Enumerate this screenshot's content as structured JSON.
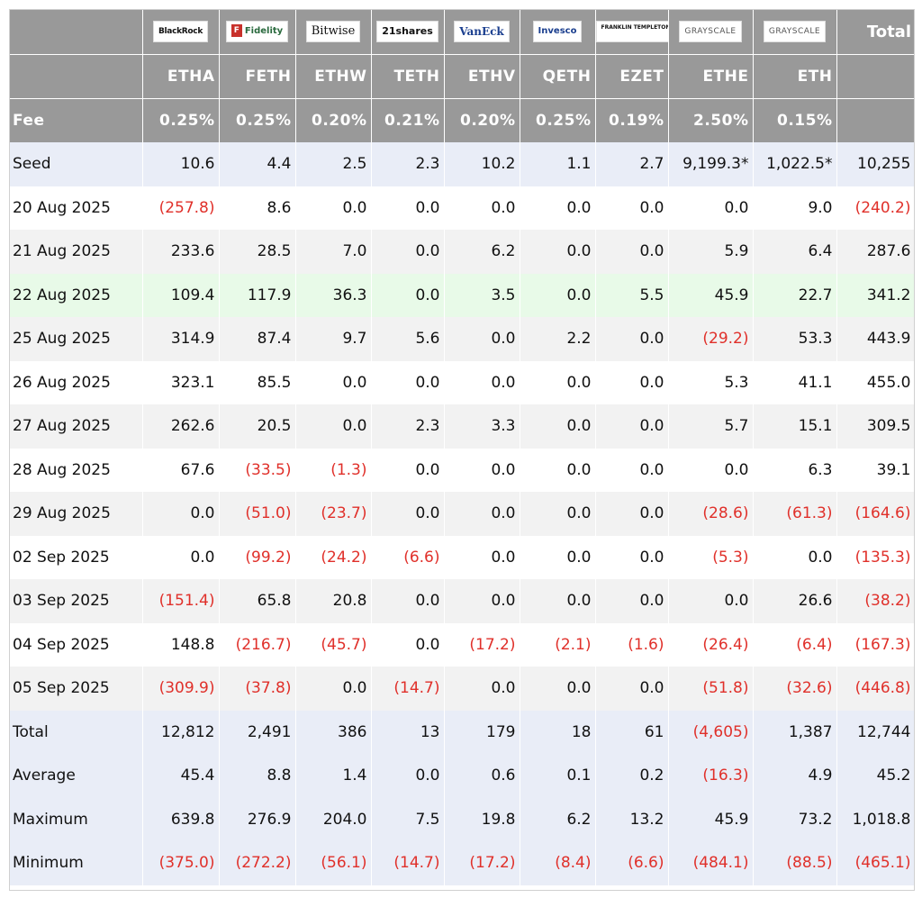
{
  "header": {
    "logos": [
      {
        "name": "BlackRock",
        "icon": "blackrock-logo"
      },
      {
        "name": "Fidelity",
        "icon": "fidelity-logo"
      },
      {
        "name": "Bitwise",
        "icon": "bitwise-logo"
      },
      {
        "name": "21shares",
        "icon": "21shares-logo"
      },
      {
        "name": "VanEck",
        "icon": "vaneck-logo"
      },
      {
        "name": "Invesco",
        "icon": "invesco-logo"
      },
      {
        "name": "FRANKLIN TEMPLETON",
        "icon": "franklin-templeton-logo"
      },
      {
        "name": "GRAYSCALE",
        "icon": "grayscale-logo"
      },
      {
        "name": "GRAYSCALE",
        "icon": "grayscale-logo"
      }
    ],
    "total_label": "Total",
    "tickers": [
      "ETHA",
      "FETH",
      "ETHW",
      "TETH",
      "ETHV",
      "QETH",
      "EZET",
      "ETHE",
      "ETH"
    ],
    "fee_label": "Fee",
    "fees": [
      "0.25%",
      "0.25%",
      "0.20%",
      "0.21%",
      "0.20%",
      "0.25%",
      "0.19%",
      "2.50%",
      "0.15%"
    ]
  },
  "rows": [
    {
      "label": "Seed",
      "style": "seed",
      "values": [
        "10.6",
        "4.4",
        "2.5",
        "2.3",
        "10.2",
        "1.1",
        "2.7",
        "9,199.3*",
        "1,022.5*",
        "10,255"
      ]
    },
    {
      "label": "20 Aug 2025",
      "style": "white",
      "values": [
        "(257.8)",
        "8.6",
        "0.0",
        "0.0",
        "0.0",
        "0.0",
        "0.0",
        "0.0",
        "9.0",
        "(240.2)"
      ]
    },
    {
      "label": "21 Aug 2025",
      "style": "alt",
      "values": [
        "233.6",
        "28.5",
        "7.0",
        "0.0",
        "6.2",
        "0.0",
        "0.0",
        "5.9",
        "6.4",
        "287.6"
      ]
    },
    {
      "label": "22 Aug 2025",
      "style": "green",
      "values": [
        "109.4",
        "117.9",
        "36.3",
        "0.0",
        "3.5",
        "0.0",
        "5.5",
        "45.9",
        "22.7",
        "341.2"
      ]
    },
    {
      "label": "25 Aug 2025",
      "style": "alt",
      "values": [
        "314.9",
        "87.4",
        "9.7",
        "5.6",
        "0.0",
        "2.2",
        "0.0",
        "(29.2)",
        "53.3",
        "443.9"
      ]
    },
    {
      "label": "26 Aug 2025",
      "style": "white",
      "values": [
        "323.1",
        "85.5",
        "0.0",
        "0.0",
        "0.0",
        "0.0",
        "0.0",
        "5.3",
        "41.1",
        "455.0"
      ]
    },
    {
      "label": "27 Aug 2025",
      "style": "alt",
      "values": [
        "262.6",
        "20.5",
        "0.0",
        "2.3",
        "3.3",
        "0.0",
        "0.0",
        "5.7",
        "15.1",
        "309.5"
      ]
    },
    {
      "label": "28 Aug 2025",
      "style": "white",
      "values": [
        "67.6",
        "(33.5)",
        "(1.3)",
        "0.0",
        "0.0",
        "0.0",
        "0.0",
        "0.0",
        "6.3",
        "39.1"
      ]
    },
    {
      "label": "29 Aug 2025",
      "style": "alt",
      "values": [
        "0.0",
        "(51.0)",
        "(23.7)",
        "0.0",
        "0.0",
        "0.0",
        "0.0",
        "(28.6)",
        "(61.3)",
        "(164.6)"
      ]
    },
    {
      "label": "02 Sep 2025",
      "style": "white",
      "values": [
        "0.0",
        "(99.2)",
        "(24.2)",
        "(6.6)",
        "0.0",
        "0.0",
        "0.0",
        "(5.3)",
        "0.0",
        "(135.3)"
      ]
    },
    {
      "label": "03 Sep 2025",
      "style": "alt",
      "values": [
        "(151.4)",
        "65.8",
        "20.8",
        "0.0",
        "0.0",
        "0.0",
        "0.0",
        "0.0",
        "26.6",
        "(38.2)"
      ]
    },
    {
      "label": "04 Sep 2025",
      "style": "white",
      "values": [
        "148.8",
        "(216.7)",
        "(45.7)",
        "0.0",
        "(17.2)",
        "(2.1)",
        "(1.6)",
        "(26.4)",
        "(6.4)",
        "(167.3)"
      ]
    },
    {
      "label": "05 Sep 2025",
      "style": "alt",
      "values": [
        "(309.9)",
        "(37.8)",
        "0.0",
        "(14.7)",
        "0.0",
        "0.0",
        "0.0",
        "(51.8)",
        "(32.6)",
        "(446.8)"
      ]
    },
    {
      "label": "Total",
      "style": "stat",
      "values": [
        "12,812",
        "2,491",
        "386",
        "13",
        "179",
        "18",
        "61",
        "(4,605)",
        "1,387",
        "12,744"
      ]
    },
    {
      "label": "Average",
      "style": "stat",
      "values": [
        "45.4",
        "8.8",
        "1.4",
        "0.0",
        "0.6",
        "0.1",
        "0.2",
        "(16.3)",
        "4.9",
        "45.2"
      ]
    },
    {
      "label": "Maximum",
      "style": "stat",
      "values": [
        "639.8",
        "276.9",
        "204.0",
        "7.5",
        "19.8",
        "6.2",
        "13.2",
        "45.9",
        "73.2",
        "1,018.8"
      ]
    },
    {
      "label": "Minimum",
      "style": "stat",
      "values": [
        "(375.0)",
        "(272.2)",
        "(56.1)",
        "(14.7)",
        "(17.2)",
        "(8.4)",
        "(6.6)",
        "(484.1)",
        "(88.5)",
        "(465.1)"
      ]
    }
  ],
  "colors": {
    "header_bg": "#999999",
    "negative": "#e0302a",
    "seed_bg": "#e9edf7",
    "highlight_bg": "#e8fae8",
    "alt_bg": "#f2f2f2"
  }
}
